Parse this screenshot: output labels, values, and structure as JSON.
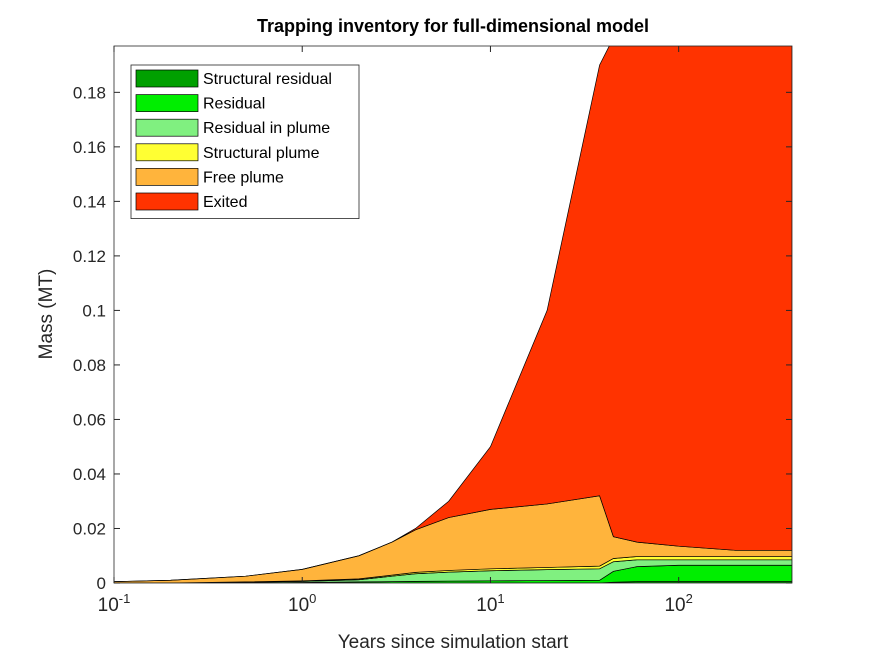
{
  "chart_data": {
    "type": "stacked-area",
    "title": "Trapping inventory for full-dimensional model",
    "xlabel": "Years since simulation start",
    "ylabel": "Mass (MT)",
    "xscale": "log",
    "x": [
      0.1,
      0.2,
      0.5,
      1,
      2,
      3,
      4,
      6,
      10,
      20,
      38,
      45,
      60,
      100,
      200,
      400
    ],
    "series": [
      {
        "name": "Structural residual",
        "color": "#00a000",
        "values": [
          0,
          0,
          0,
          0,
          0,
          0,
          0,
          0,
          0,
          0,
          0,
          0.0003,
          0.0005,
          0.0005,
          0.0005,
          0.0005
        ]
      },
      {
        "name": "Residual",
        "color": "#00ee00",
        "values": [
          0,
          0,
          0.0001,
          0.0002,
          0.0004,
          0.0005,
          0.0006,
          0.0007,
          0.0008,
          0.0009,
          0.001,
          0.004,
          0.0055,
          0.006,
          0.006,
          0.006
        ]
      },
      {
        "name": "Residual in plume",
        "color": "#80f080",
        "values": [
          0,
          0,
          0.0002,
          0.0004,
          0.0008,
          0.002,
          0.0028,
          0.0033,
          0.0037,
          0.004,
          0.0042,
          0.0035,
          0.0025,
          0.002,
          0.002,
          0.002
        ]
      },
      {
        "name": "Structural plume",
        "color": "#ffff33",
        "values": [
          0,
          0,
          0.0001,
          0.0002,
          0.0003,
          0.0004,
          0.0005,
          0.0006,
          0.0007,
          0.0008,
          0.001,
          0.0012,
          0.0012,
          0.0012,
          0.0012,
          0.0012
        ]
      },
      {
        "name": "Free plume",
        "color": "#ffb43c",
        "values": [
          0.0005,
          0.001,
          0.0021,
          0.0042,
          0.0085,
          0.0121,
          0.0156,
          0.0194,
          0.0218,
          0.0233,
          0.0258,
          0.008,
          0.0053,
          0.0038,
          0.0023,
          0.0023
        ]
      },
      {
        "name": "Exited",
        "color": "#ff3300",
        "values": [
          0,
          0,
          0,
          0,
          0,
          0,
          0.0005,
          0.006,
          0.023,
          0.071,
          0.158,
          0.183,
          0.185,
          0.1865,
          0.188,
          0.188
        ]
      }
    ],
    "xlim": [
      0.1,
      400
    ],
    "ylim": [
      0,
      0.197
    ],
    "xticks": [
      {
        "value": 0.1,
        "label": "10",
        "exponent": "-1"
      },
      {
        "value": 1,
        "label": "10",
        "exponent": "0"
      },
      {
        "value": 10,
        "label": "10",
        "exponent": "1"
      },
      {
        "value": 100,
        "label": "10",
        "exponent": "2"
      }
    ],
    "yticks": [
      0,
      0.02,
      0.04,
      0.06,
      0.08,
      0.1,
      0.12,
      0.14,
      0.16,
      0.18
    ],
    "legend": "upper left",
    "grid": false
  }
}
